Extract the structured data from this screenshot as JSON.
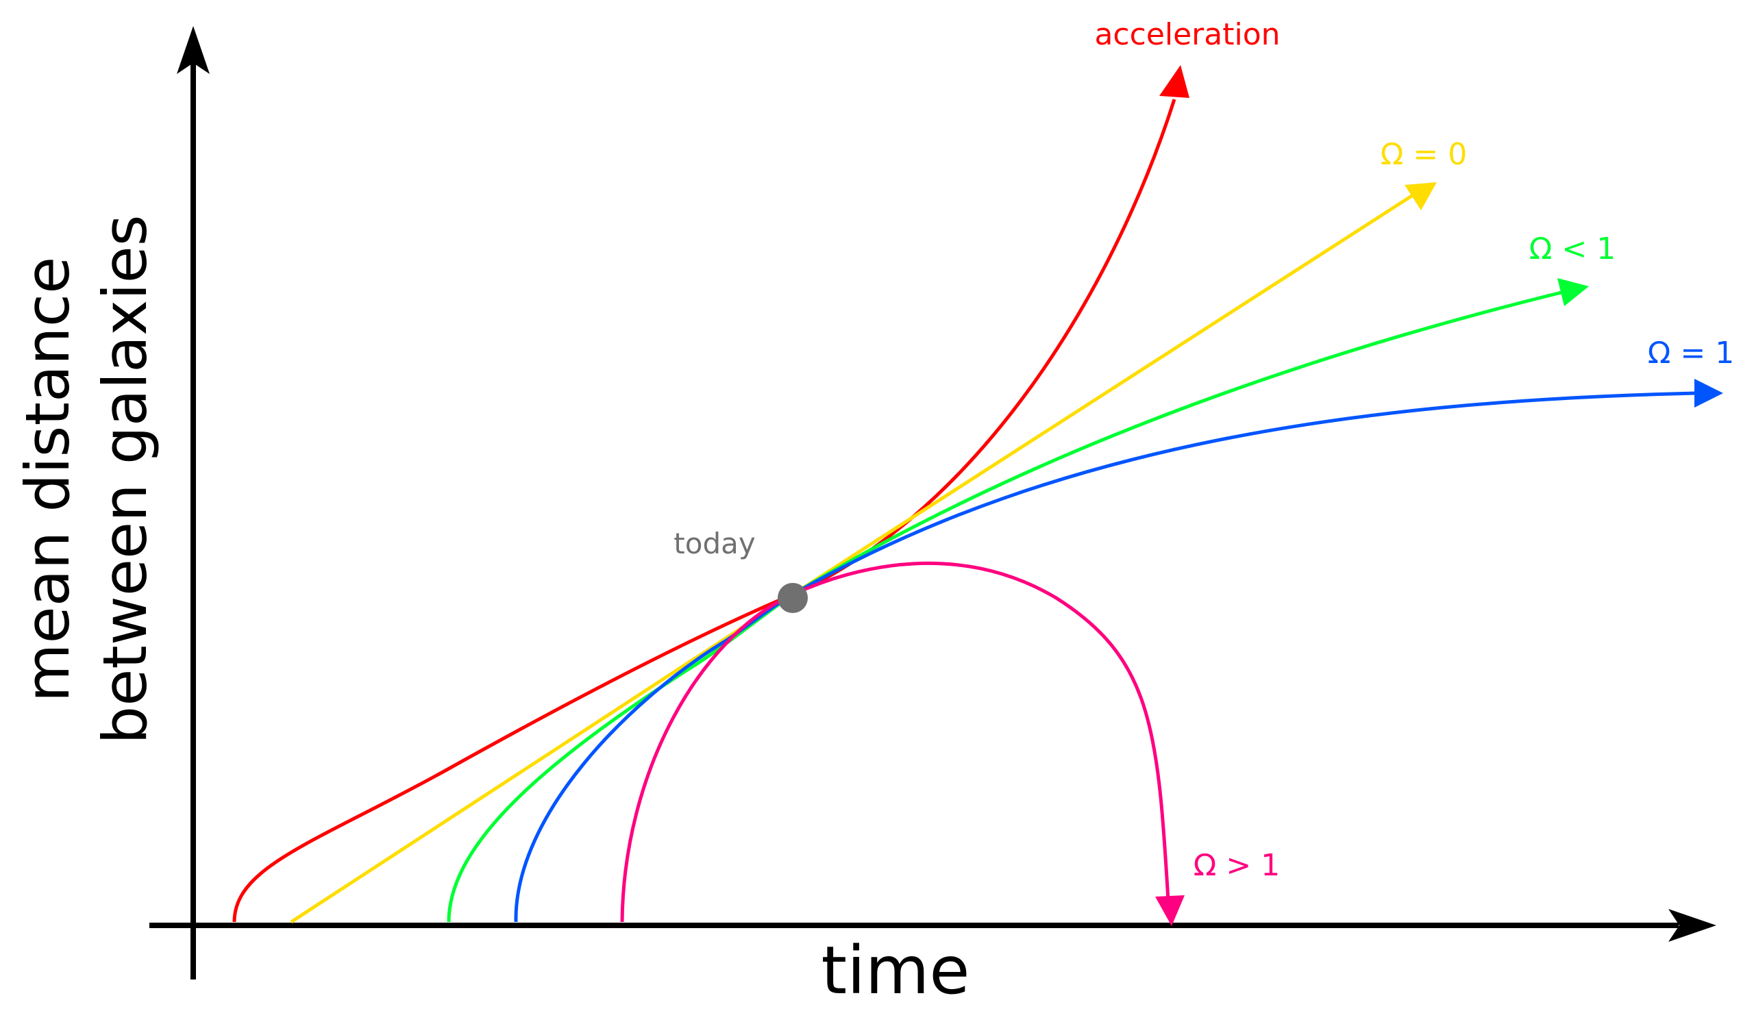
{
  "axes": {
    "x_label": "time",
    "y_label_line1": "mean distance",
    "y_label_line2": "between galaxies",
    "color": "#000000"
  },
  "today": {
    "label": "today",
    "color": "#707070"
  },
  "curves": [
    {
      "id": "acceleration",
      "label": "acceleration",
      "color": "#ff0000"
    },
    {
      "id": "omega-0",
      "label": "Ω = 0",
      "color": "#ffdd00"
    },
    {
      "id": "omega-lt-1",
      "label": "Ω < 1",
      "color": "#00ff33"
    },
    {
      "id": "omega-1",
      "label": "Ω = 1",
      "color": "#0055ff"
    },
    {
      "id": "omega-gt-1",
      "label": "Ω > 1",
      "color": "#ff0080"
    }
  ]
}
